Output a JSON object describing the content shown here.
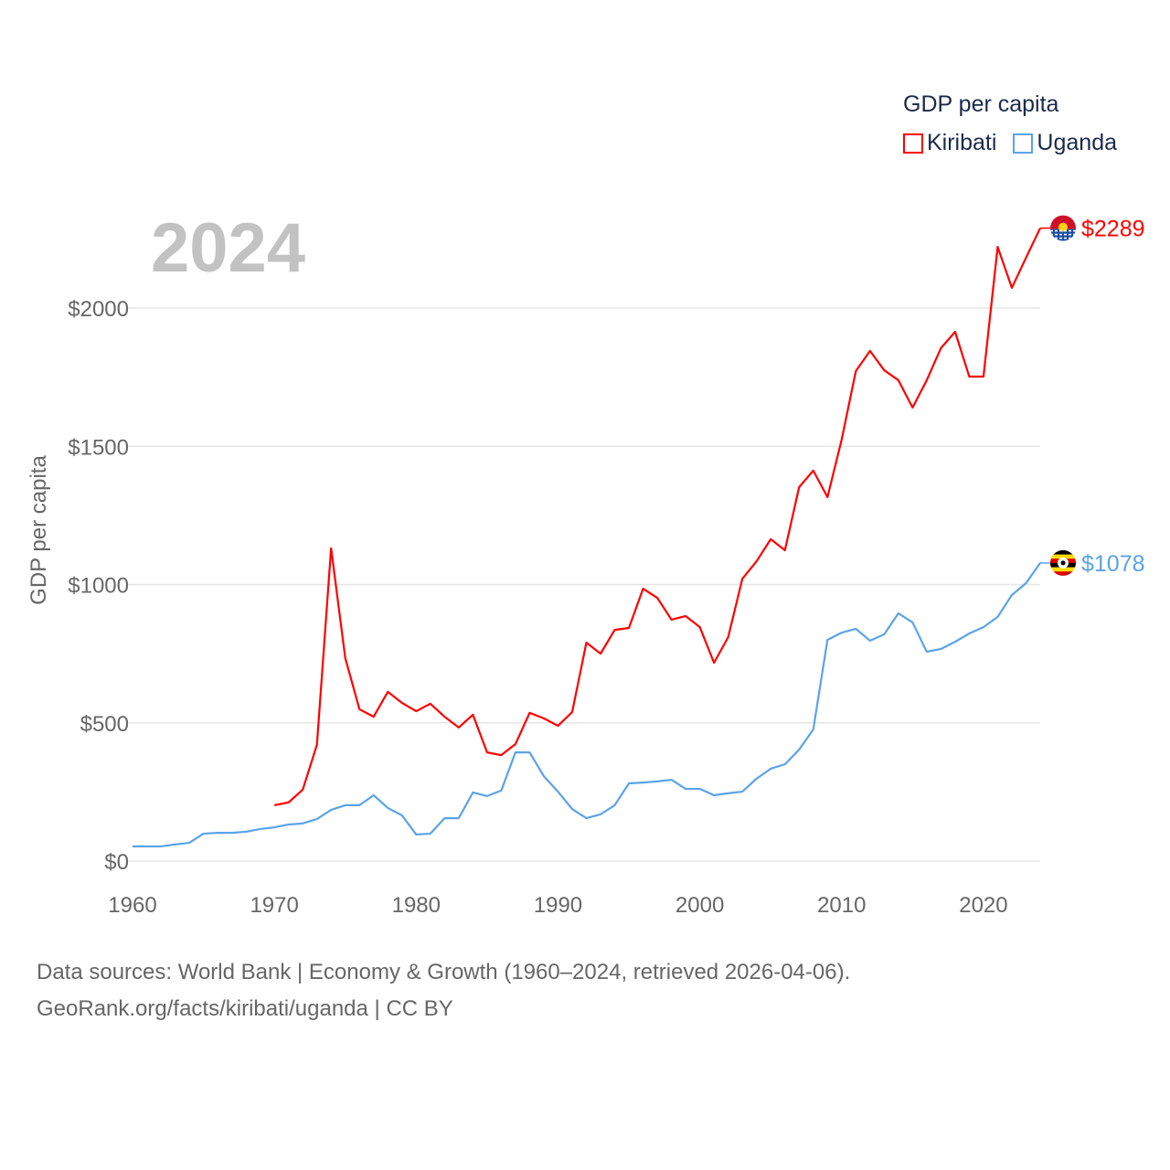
{
  "chart_data": {
    "type": "line",
    "title": "GDP per capita",
    "ylabel": "GDP per capita",
    "xlabel": "",
    "xlim": [
      1960,
      2024
    ],
    "ylim": [
      0,
      2300
    ],
    "x_ticks": [
      1960,
      1970,
      1980,
      1990,
      2000,
      2010,
      2020
    ],
    "x_tick_labels": [
      "1960",
      "1970",
      "1980",
      "1990",
      "2000",
      "2010",
      "2020"
    ],
    "y_ticks": [
      0,
      500,
      1000,
      1500,
      2000
    ],
    "y_tick_labels": [
      "$0",
      "$500",
      "$1000",
      "$1500",
      "$2000"
    ],
    "grid": true,
    "legend_placement": "top-right",
    "current_year": "2024",
    "series": [
      {
        "name": "Kiribati",
        "color": "#ff0000",
        "end_label": "$2289",
        "start_year": 1970,
        "values": [
          202,
          212,
          258,
          420,
          1131,
          734,
          549,
          522,
          612,
          572,
          542,
          569,
          522,
          483,
          529,
          393,
          383,
          423,
          536,
          516,
          489,
          539,
          790,
          750,
          836,
          843,
          985,
          952,
          873,
          886,
          846,
          717,
          810,
          1021,
          1084,
          1164,
          1124,
          1352,
          1412,
          1316,
          1524,
          1772,
          1845,
          1775,
          1739,
          1640,
          1739,
          1855,
          1914,
          1752,
          1752,
          2221,
          2073,
          2182,
          2289
        ]
      },
      {
        "name": "Uganda",
        "color": "#5ba3e8",
        "end_label": "$1078",
        "start_year": 1960,
        "values": [
          53,
          53,
          53,
          60,
          66,
          99,
          102,
          102,
          106,
          116,
          122,
          132,
          136,
          152,
          185,
          202,
          202,
          238,
          192,
          165,
          96,
          99,
          155,
          155,
          248,
          235,
          255,
          393,
          393,
          307,
          251,
          188,
          155,
          169,
          202,
          281,
          284,
          288,
          294,
          261,
          261,
          238,
          245,
          251,
          298,
          334,
          350,
          403,
          476,
          800,
          826,
          840,
          797,
          820,
          896,
          863,
          757,
          767,
          793,
          823,
          846,
          883,
          962,
          1005,
          1078
        ]
      }
    ]
  },
  "source": {
    "line1": "Data sources: World Bank | Economy & Growth (1960–2024, retrieved 2026-04-06).",
    "line2": "GeoRank.org/facts/kiribati/uganda | CC BY"
  }
}
